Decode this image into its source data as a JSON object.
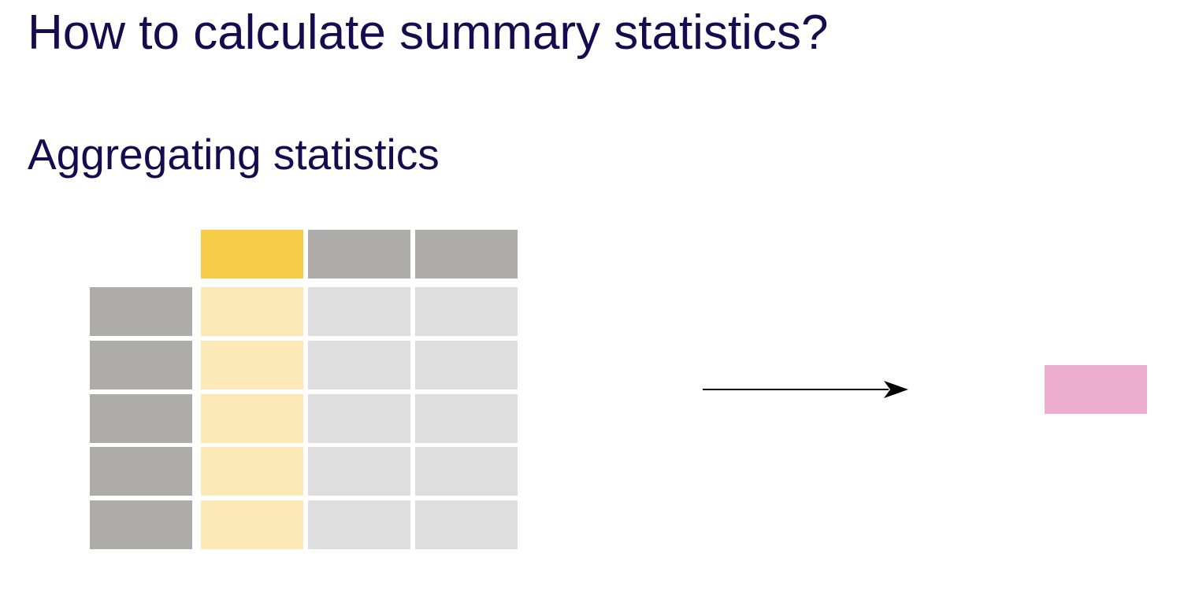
{
  "slide": {
    "title": "How to calculate summary statistics?",
    "subtitle": "Aggregating statistics"
  },
  "diagram": {
    "table": {
      "columns": 3,
      "rows": 5,
      "selected_column": 0
    },
    "colors": {
      "text": "#140c4f",
      "header": "#adacaa",
      "selected_header": "#f6cb47",
      "cell": "#dedede",
      "selected_cell": "#fce9b6",
      "result": "#ecadcf",
      "arrow": "#000000"
    },
    "arrow_icon": "right-arrow-icon"
  }
}
